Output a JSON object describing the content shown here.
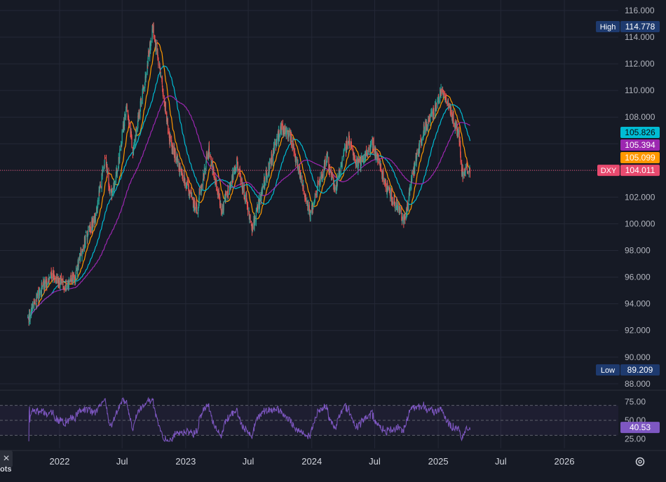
{
  "chart_data": {
    "type": "candlestick",
    "symbol": "DXY",
    "price_axis": {
      "ticks": [
        "116.000",
        "114.000",
        "112.000",
        "110.000",
        "108.000",
        "106.000",
        "104.000",
        "102.000",
        "100.000",
        "98.000",
        "96.000",
        "94.000",
        "92.000",
        "90.000",
        "88.000"
      ],
      "range": [
        87.6,
        116.5
      ]
    },
    "time_axis": {
      "labels": [
        {
          "text": "2022",
          "date": "2022-01-01"
        },
        {
          "text": "Jul",
          "date": "2022-07-01"
        },
        {
          "text": "2023",
          "date": "2023-01-01"
        },
        {
          "text": "Jul",
          "date": "2023-07-01"
        },
        {
          "text": "2024",
          "date": "2024-01-01"
        },
        {
          "text": "Jul",
          "date": "2024-07-01"
        },
        {
          "text": "2025",
          "date": "2025-01-01"
        },
        {
          "text": "Jul",
          "date": "2025-07-01"
        },
        {
          "text": "2026",
          "date": "2026-01-01"
        }
      ]
    },
    "markers": {
      "high": {
        "label": "High",
        "value": "114.778"
      },
      "low": {
        "label": "Low",
        "value": "89.209"
      },
      "last": {
        "label": "DXY",
        "value": "104.011"
      },
      "ma": [
        {
          "value": "105.826",
          "color": "#00bcd4"
        },
        {
          "value": "105.394",
          "color": "#9c27b0"
        },
        {
          "value": "105.099",
          "color": "#ff9800"
        }
      ]
    },
    "price_path": [
      [
        "2021-10-01",
        92.8
      ],
      [
        "2021-11-15",
        95.5
      ],
      [
        "2021-12-15",
        96.1
      ],
      [
        "2022-01-15",
        95.3
      ],
      [
        "2022-02-15",
        96.0
      ],
      [
        "2022-03-15",
        98.8
      ],
      [
        "2022-04-15",
        100.5
      ],
      [
        "2022-05-12",
        104.8
      ],
      [
        "2022-06-01",
        101.9
      ],
      [
        "2022-06-20",
        104.6
      ],
      [
        "2022-07-14",
        109.0
      ],
      [
        "2022-08-01",
        105.5
      ],
      [
        "2022-08-22",
        108.8
      ],
      [
        "2022-09-28",
        114.6
      ],
      [
        "2022-10-20",
        111.2
      ],
      [
        "2022-11-15",
        106.5
      ],
      [
        "2022-12-15",
        104.0
      ],
      [
        "2023-01-18",
        102.0
      ],
      [
        "2023-02-02",
        101.0
      ],
      [
        "2023-03-08",
        105.5
      ],
      [
        "2023-04-14",
        101.0
      ],
      [
        "2023-05-30",
        104.6
      ],
      [
        "2023-07-14",
        99.6
      ],
      [
        "2023-08-15",
        103.0
      ],
      [
        "2023-10-03",
        107.2
      ],
      [
        "2023-11-01",
        106.5
      ],
      [
        "2023-12-27",
        100.6
      ],
      [
        "2024-01-15",
        102.6
      ],
      [
        "2024-02-14",
        104.9
      ],
      [
        "2024-03-08",
        102.4
      ],
      [
        "2024-04-16",
        106.5
      ],
      [
        "2024-05-15",
        104.3
      ],
      [
        "2024-06-26",
        106.0
      ],
      [
        "2024-08-05",
        102.7
      ],
      [
        "2024-09-27",
        100.2
      ],
      [
        "2024-10-15",
        103.3
      ],
      [
        "2024-11-20",
        107.1
      ],
      [
        "2024-12-20",
        108.3
      ],
      [
        "2025-01-13",
        110.1
      ],
      [
        "2025-02-03",
        108.8
      ],
      [
        "2025-03-03",
        106.5
      ],
      [
        "2025-03-10",
        103.7
      ],
      [
        "2025-03-25",
        104.2
      ],
      [
        "2025-04-03",
        104.01
      ]
    ],
    "rsi": {
      "levels": [
        "75.00",
        "50.00",
        "25.00"
      ],
      "upper": 70,
      "lower": 30,
      "value": "40.53",
      "color": "#7e57c2"
    }
  },
  "ui": {
    "close_icon": "×",
    "bottom_fragment": "ots",
    "settings_icon": "gear-icon"
  }
}
